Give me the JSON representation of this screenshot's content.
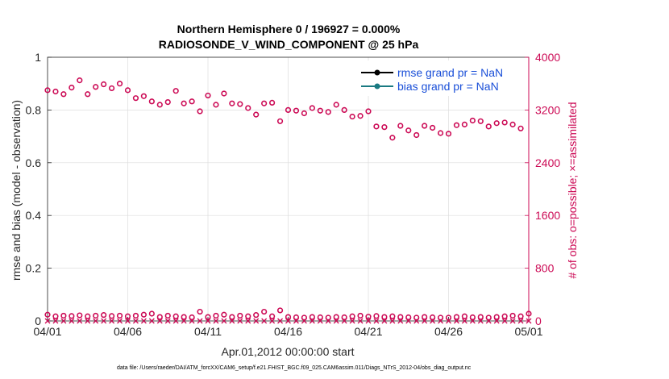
{
  "colors": {
    "right_axis": "#cc0a55",
    "rmse": "#000000",
    "bias": "#1a7a82",
    "legend_text": "#1a4fd8",
    "grid": "#dddddd"
  },
  "chart_data": {
    "type": "scatter",
    "title_line1": "Northern Hemisphere 0 / 196927 = 0.000%",
    "title_line2": "RADIOSONDE_V_WIND_COMPONENT @ 25 hPa",
    "xlabel": "Apr.01,2012 00:00:00 start",
    "ylabel_left": "rmse and bias (model - observation)",
    "ylabel_right": "# of obs: o=possible; ×=assimilated",
    "xlim": [
      0,
      30
    ],
    "ylim_left": [
      0,
      1
    ],
    "ylim_right": [
      0,
      4000
    ],
    "x_ticks": [
      0,
      5,
      10,
      15,
      20,
      25,
      30
    ],
    "x_tick_labels": [
      "04/01",
      "04/06",
      "04/11",
      "04/16",
      "04/21",
      "04/26",
      "05/01"
    ],
    "y_left_ticks": [
      0,
      0.2,
      0.4,
      0.6,
      0.8,
      1
    ],
    "y_left_tick_labels": [
      "0",
      "0.2",
      "0.4",
      "0.6",
      "0.8",
      "1"
    ],
    "y_right_ticks": [
      0,
      800,
      1600,
      2400,
      3200,
      4000
    ],
    "y_right_tick_labels": [
      "0",
      "800",
      "1600",
      "2400",
      "3200",
      "4000"
    ],
    "grid": true,
    "legend": {
      "position": "top-right",
      "entries": [
        "rmse grand pr = NaN",
        "bias grand pr = NaN"
      ]
    },
    "series": [
      {
        "name": "possible (upper)",
        "axis": "right",
        "marker": "circle",
        "x": [
          0,
          0.5,
          1,
          1.5,
          2,
          2.5,
          3,
          3.5,
          4,
          4.5,
          5,
          5.5,
          6,
          6.5,
          7,
          7.5,
          8,
          8.5,
          9,
          9.5,
          10,
          10.5,
          11,
          11.5,
          12,
          12.5,
          13,
          13.5,
          14,
          14.5,
          15,
          15.5,
          16,
          16.5,
          17,
          17.5,
          18,
          18.5,
          19,
          19.5,
          20,
          20.5,
          21,
          21.5,
          22,
          22.5,
          23,
          23.5,
          24,
          24.5,
          25,
          25.5,
          26,
          26.5,
          27,
          27.5,
          28,
          28.5,
          29,
          29.5
        ],
        "y": [
          3500,
          3480,
          3440,
          3540,
          3650,
          3440,
          3550,
          3590,
          3530,
          3600,
          3500,
          3380,
          3410,
          3330,
          3280,
          3320,
          3490,
          3300,
          3330,
          3180,
          3420,
          3280,
          3450,
          3300,
          3290,
          3230,
          3130,
          3300,
          3310,
          3030,
          3200,
          3190,
          3150,
          3230,
          3190,
          3170,
          3280,
          3200,
          3100,
          3110,
          3180,
          2950,
          2940,
          2780,
          2960,
          2890,
          2820,
          2960,
          2930,
          2850,
          2840,
          2970,
          2980,
          3040,
          3030,
          2950,
          3000,
          3010,
          2980,
          2920
        ]
      },
      {
        "name": "possible (lower)",
        "axis": "right",
        "marker": "circle",
        "x": [
          0,
          0.5,
          1,
          1.5,
          2,
          2.5,
          3,
          3.5,
          4,
          4.5,
          5,
          5.5,
          6,
          6.5,
          7,
          7.5,
          8,
          8.5,
          9,
          9.5,
          10,
          10.5,
          11,
          11.5,
          12,
          12.5,
          13,
          13.5,
          14,
          14.5,
          15,
          15.5,
          16,
          16.5,
          17,
          17.5,
          18,
          18.5,
          19,
          19.5,
          20,
          20.5,
          21,
          21.5,
          22,
          22.5,
          23,
          23.5,
          24,
          24.5,
          25,
          25.5,
          26,
          26.5,
          27,
          27.5,
          28,
          28.5,
          29,
          29.5,
          30
        ],
        "y": [
          95,
          70,
          80,
          75,
          85,
          70,
          80,
          90,
          75,
          80,
          70,
          80,
          95,
          110,
          60,
          80,
          70,
          60,
          55,
          140,
          60,
          80,
          95,
          60,
          80,
          70,
          90,
          140,
          70,
          160,
          60,
          55,
          50,
          60,
          55,
          50,
          60,
          55,
          70,
          80,
          65,
          75,
          60,
          70,
          60,
          55,
          50,
          60,
          55,
          50,
          50,
          60,
          70,
          55,
          60,
          50,
          60,
          70,
          80,
          70,
          110
        ]
      },
      {
        "name": "assimilated",
        "axis": "right",
        "marker": "x",
        "x": [
          0,
          0.5,
          1,
          1.5,
          2,
          2.5,
          3,
          3.5,
          4,
          4.5,
          5,
          5.5,
          6,
          6.5,
          7,
          7.5,
          8,
          8.5,
          9,
          9.5,
          10,
          10.5,
          11,
          11.5,
          12,
          12.5,
          13,
          13.5,
          14,
          14.5,
          15,
          15.5,
          16,
          16.5,
          17,
          17.5,
          18,
          18.5,
          19,
          19.5,
          20,
          20.5,
          21,
          21.5,
          22,
          22.5,
          23,
          23.5,
          24,
          24.5,
          25,
          25.5,
          26,
          26.5,
          27,
          27.5,
          28,
          28.5,
          29,
          29.5,
          30
        ],
        "y": [
          0,
          0,
          0,
          0,
          0,
          0,
          0,
          0,
          0,
          0,
          0,
          0,
          0,
          0,
          0,
          0,
          0,
          0,
          0,
          0,
          0,
          0,
          0,
          0,
          0,
          0,
          0,
          0,
          0,
          0,
          0,
          0,
          0,
          0,
          0,
          0,
          0,
          0,
          0,
          0,
          0,
          0,
          0,
          0,
          0,
          0,
          0,
          0,
          0,
          0,
          0,
          0,
          0,
          0,
          0,
          0,
          0,
          0,
          0,
          0,
          0
        ]
      }
    ]
  },
  "footer": "data file: /Users/raeder/DAI/ATM_forcXX/CAM6_setup/f.e21.FHIST_BGC.f09_025.CAM6assim.011/Diags_NTrS_2012-04/obs_diag_output.nc"
}
